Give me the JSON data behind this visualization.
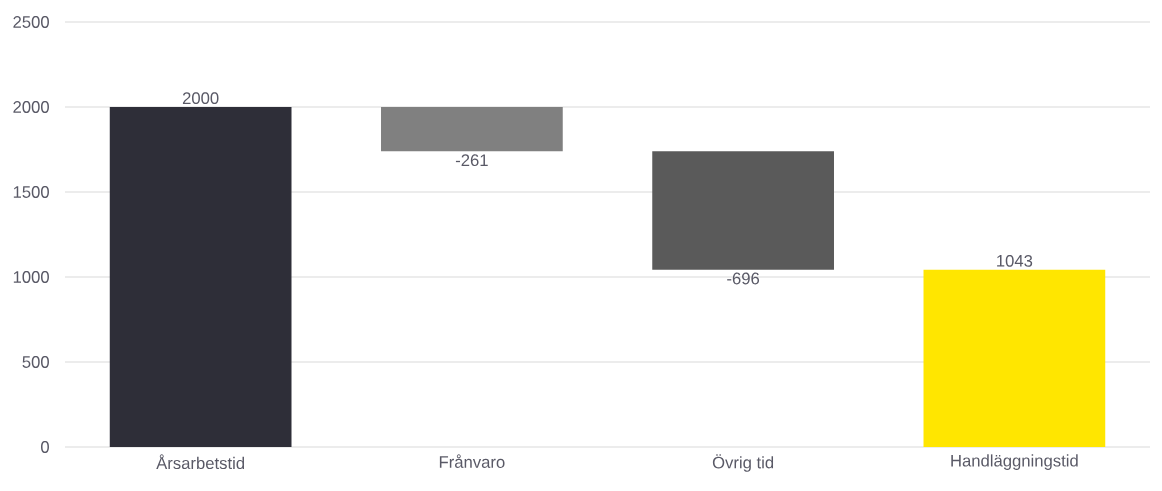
{
  "chart_data": {
    "type": "bar",
    "categories": [
      "Årsarbetstid",
      "Frånvaro",
      "Övrig tid",
      "Handläggningstid"
    ],
    "values": [
      2000,
      -261,
      -696,
      1043
    ],
    "base": [
      0,
      2000,
      1739,
      0
    ],
    "colors": [
      "#2e2e38",
      "#808080",
      "#5a5a5a",
      "#ffe600"
    ],
    "ylim": [
      0,
      2500
    ],
    "yticks": [
      0,
      500,
      1000,
      1500,
      2000,
      2500
    ],
    "grid": "y",
    "data_labels": true
  }
}
